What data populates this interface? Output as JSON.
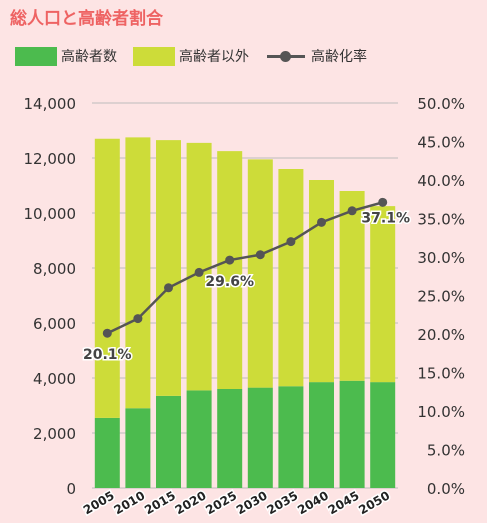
{
  "title": "総人口と高齢者割合",
  "legend": {
    "elderly": "高齢者数",
    "non_elderly": "高齢者以外",
    "rate": "高齢化率"
  },
  "colors": {
    "elderly": "#4cbb4e",
    "non_elderly": "#cddc39",
    "rate": "#555555",
    "title": "#ee6363",
    "background": "#fde4e4"
  },
  "chart_data": {
    "type": "bar",
    "stacked": true,
    "categories": [
      "2005",
      "2010",
      "2015",
      "2020",
      "2025",
      "2030",
      "2035",
      "2040",
      "2045",
      "2050"
    ],
    "series": [
      {
        "name": "高齢者数",
        "values": [
          2550,
          2900,
          3350,
          3550,
          3600,
          3650,
          3700,
          3850,
          3900,
          3850
        ]
      },
      {
        "name": "高齢者以外",
        "values": [
          10150,
          9850,
          9300,
          9000,
          8650,
          8300,
          7900,
          7350,
          6900,
          6400
        ]
      }
    ],
    "line_series": {
      "name": "高齢化率",
      "values": [
        20.1,
        22.0,
        26.0,
        28.0,
        29.6,
        30.3,
        32.0,
        34.5,
        36.0,
        37.1
      ],
      "labels": [
        "20.1%",
        "",
        "",
        "",
        "29.6%",
        "",
        "",
        "",
        "",
        "37.1%"
      ]
    },
    "y_left": {
      "ylim": [
        0,
        14000
      ],
      "ticks": [
        0,
        2000,
        4000,
        6000,
        8000,
        10000,
        12000,
        14000
      ],
      "tick_labels": [
        "0",
        "2,000",
        "4,000",
        "6,000",
        "8,000",
        "10,000",
        "12,000",
        "14,000"
      ]
    },
    "y_right": {
      "ylim": [
        0,
        50
      ],
      "ticks": [
        0,
        5,
        10,
        15,
        20,
        25,
        30,
        35,
        40,
        45,
        50
      ],
      "tick_labels": [
        "0.0%",
        "5.0%",
        "10.0%",
        "15.0%",
        "20.0%",
        "25.0%",
        "30.0%",
        "35.0%",
        "40.0%",
        "45.0%",
        "50.0%"
      ]
    },
    "grid": true,
    "legend_position": "top-left"
  }
}
